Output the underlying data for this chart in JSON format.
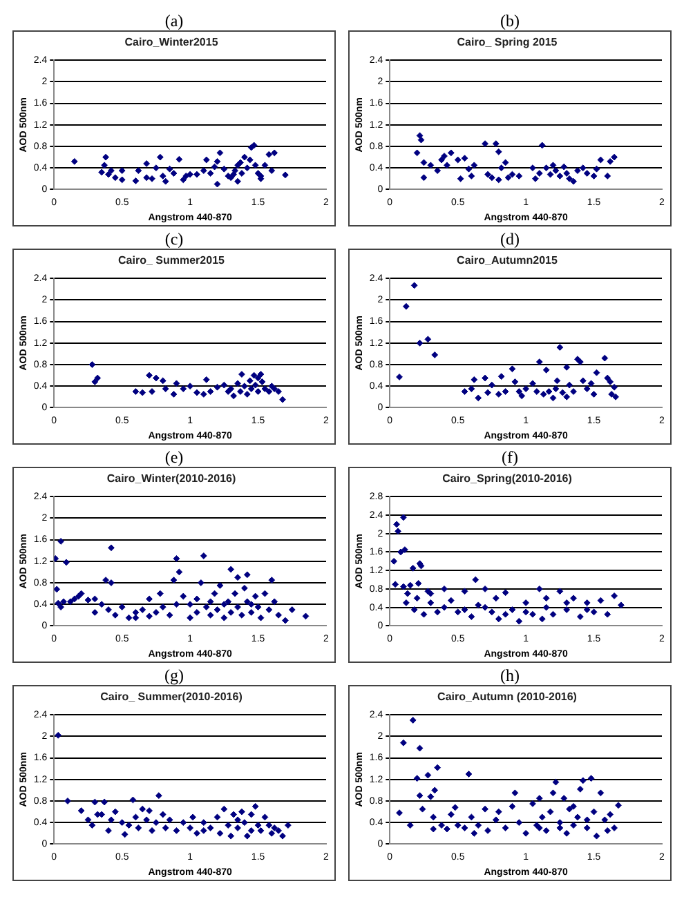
{
  "chart_data": [
    {
      "type": "scatter",
      "title": "Cairo_Winter2015",
      "annotations": [
        "(a)"
      ],
      "xlabel": "Angstrom 440-870",
      "ylabel": "AOD 500nm",
      "xlim": [
        0,
        2
      ],
      "xticks": [
        0,
        0.5,
        1,
        1.5,
        2
      ],
      "ylim": [
        0,
        2.4
      ],
      "yticks": [
        0,
        0.4,
        0.8,
        1.2,
        1.6,
        2,
        2.4
      ],
      "grid": "y",
      "marker": "diamond",
      "color": "#000080",
      "x": [
        0.15,
        0.35,
        0.37,
        0.38,
        0.4,
        0.42,
        0.45,
        0.5,
        0.5,
        0.6,
        0.62,
        0.68,
        0.68,
        0.72,
        0.75,
        0.78,
        0.8,
        0.82,
        0.85,
        0.88,
        0.92,
        0.95,
        0.97,
        1.0,
        1.05,
        1.1,
        1.12,
        1.15,
        1.18,
        1.2,
        1.22,
        1.25,
        1.2,
        1.28,
        1.3,
        1.32,
        1.33,
        1.35,
        1.35,
        1.37,
        1.38,
        1.4,
        1.42,
        1.44,
        1.45,
        1.47,
        1.48,
        1.5,
        1.52,
        1.52,
        1.55,
        1.58,
        1.6,
        1.62,
        1.7
      ],
      "values": [
        0.52,
        0.32,
        0.45,
        0.6,
        0.28,
        0.35,
        0.22,
        0.35,
        0.18,
        0.16,
        0.35,
        0.48,
        0.22,
        0.2,
        0.4,
        0.6,
        0.25,
        0.15,
        0.38,
        0.3,
        0.56,
        0.18,
        0.25,
        0.28,
        0.28,
        0.35,
        0.55,
        0.3,
        0.42,
        0.52,
        0.68,
        0.38,
        0.1,
        0.25,
        0.22,
        0.28,
        0.35,
        0.15,
        0.45,
        0.5,
        0.3,
        0.6,
        0.4,
        0.55,
        0.78,
        0.82,
        0.45,
        0.3,
        0.2,
        0.25,
        0.45,
        0.65,
        0.35,
        0.68,
        0.27
      ]
    },
    {
      "type": "scatter",
      "title": "Cairo_ Spring 2015",
      "annotations": [
        "(b)"
      ],
      "xlabel": "Angstrom 440-870",
      "ylabel": "AOD 500nm",
      "xlim": [
        0,
        2
      ],
      "xticks": [
        0,
        0.5,
        1,
        1.5,
        2
      ],
      "ylim": [
        0,
        2.4
      ],
      "yticks": [
        0,
        0.4,
        0.8,
        1.2,
        1.6,
        2,
        2.4
      ],
      "grid": "y",
      "marker": "diamond",
      "color": "#000080",
      "x": [
        0.2,
        0.22,
        0.23,
        0.25,
        0.25,
        0.3,
        0.35,
        0.38,
        0.4,
        0.42,
        0.45,
        0.5,
        0.52,
        0.55,
        0.58,
        0.6,
        0.62,
        0.7,
        0.72,
        0.75,
        0.78,
        0.8,
        0.8,
        0.82,
        0.85,
        0.87,
        0.9,
        0.95,
        1.05,
        1.07,
        1.1,
        1.12,
        1.15,
        1.18,
        1.2,
        1.22,
        1.25,
        1.28,
        1.3,
        1.32,
        1.35,
        1.38,
        1.42,
        1.45,
        1.5,
        1.52,
        1.55,
        1.6,
        1.62,
        1.65
      ],
      "values": [
        0.68,
        1.0,
        0.92,
        0.5,
        0.22,
        0.45,
        0.35,
        0.55,
        0.62,
        0.45,
        0.68,
        0.55,
        0.2,
        0.58,
        0.38,
        0.25,
        0.45,
        0.85,
        0.28,
        0.22,
        0.85,
        0.7,
        0.18,
        0.4,
        0.5,
        0.22,
        0.28,
        0.25,
        0.4,
        0.2,
        0.3,
        0.82,
        0.4,
        0.28,
        0.45,
        0.35,
        0.25,
        0.42,
        0.3,
        0.2,
        0.15,
        0.35,
        0.4,
        0.3,
        0.25,
        0.38,
        0.55,
        0.25,
        0.52,
        0.6
      ]
    },
    {
      "type": "scatter",
      "title": "Cairo_ Summer2015",
      "annotations": [
        "(c)"
      ],
      "xlabel": "Angstrom 440-870",
      "ylabel": "AOD 500nm",
      "xlim": [
        0,
        2
      ],
      "xticks": [
        0,
        0.5,
        1,
        1.5,
        2
      ],
      "ylim": [
        0,
        2.4
      ],
      "yticks": [
        0,
        0.4,
        0.8,
        1.2,
        1.6,
        2,
        2.4
      ],
      "grid": "y",
      "marker": "diamond",
      "color": "#000080",
      "x": [
        0.28,
        0.3,
        0.32,
        0.6,
        0.65,
        0.7,
        0.72,
        0.75,
        0.8,
        0.82,
        0.88,
        0.9,
        0.95,
        1.0,
        1.05,
        1.1,
        1.12,
        1.15,
        1.2,
        1.25,
        1.28,
        1.3,
        1.32,
        1.35,
        1.37,
        1.38,
        1.4,
        1.42,
        1.44,
        1.45,
        1.47,
        1.48,
        1.5,
        1.5,
        1.52,
        1.53,
        1.55,
        1.58,
        1.6,
        1.62,
        1.65,
        1.68
      ],
      "values": [
        0.8,
        0.48,
        0.55,
        0.3,
        0.28,
        0.6,
        0.3,
        0.55,
        0.5,
        0.35,
        0.25,
        0.45,
        0.35,
        0.4,
        0.28,
        0.25,
        0.52,
        0.3,
        0.38,
        0.42,
        0.3,
        0.35,
        0.22,
        0.45,
        0.3,
        0.62,
        0.4,
        0.25,
        0.5,
        0.35,
        0.6,
        0.42,
        0.55,
        0.3,
        0.62,
        0.48,
        0.35,
        0.3,
        0.4,
        0.35,
        0.3,
        0.15
      ]
    },
    {
      "type": "scatter",
      "title": "Cairo_Autumn2015",
      "annotations": [
        "(d)"
      ],
      "xlabel": "Angstrom 440-870",
      "ylabel": "AOD 500nm",
      "xlim": [
        0,
        2
      ],
      "xticks": [
        0,
        0.5,
        1,
        1.5,
        2
      ],
      "ylim": [
        0,
        2.4
      ],
      "yticks": [
        0,
        0.4,
        0.8,
        1.2,
        1.6,
        2,
        2.4
      ],
      "grid": "y",
      "marker": "diamond",
      "color": "#000080",
      "x": [
        0.07,
        0.12,
        0.18,
        0.22,
        0.28,
        0.33,
        0.55,
        0.6,
        0.62,
        0.65,
        0.7,
        0.72,
        0.75,
        0.8,
        0.82,
        0.85,
        0.9,
        0.92,
        0.95,
        0.97,
        1.0,
        1.05,
        1.08,
        1.1,
        1.13,
        1.15,
        1.17,
        1.2,
        1.22,
        1.23,
        1.25,
        1.27,
        1.3,
        1.3,
        1.32,
        1.35,
        1.38,
        1.4,
        1.42,
        1.45,
        1.48,
        1.5,
        1.52,
        1.58,
        1.6,
        1.62,
        1.63,
        1.65,
        1.66
      ],
      "values": [
        0.57,
        1.88,
        2.27,
        1.2,
        1.27,
        0.98,
        0.3,
        0.35,
        0.52,
        0.18,
        0.55,
        0.28,
        0.42,
        0.25,
        0.58,
        0.3,
        0.72,
        0.48,
        0.3,
        0.22,
        0.35,
        0.45,
        0.3,
        0.85,
        0.25,
        0.7,
        0.3,
        0.18,
        0.35,
        0.5,
        1.12,
        0.28,
        0.75,
        0.2,
        0.42,
        0.3,
        0.9,
        0.85,
        0.5,
        0.35,
        0.45,
        0.25,
        0.65,
        0.92,
        0.55,
        0.48,
        0.25,
        0.38,
        0.2
      ]
    },
    {
      "type": "scatter",
      "title": "Cairo_Winter(2010-2016)",
      "annotations": [
        "(e)"
      ],
      "xlabel": "Angstrom 440-870",
      "ylabel": "AOD 500nm",
      "xlim": [
        0,
        2
      ],
      "xticks": [
        0,
        0.5,
        1,
        1.5,
        2
      ],
      "ylim": [
        0,
        2.4
      ],
      "yticks": [
        0,
        0.4,
        0.8,
        1.2,
        1.6,
        2,
        2.4
      ],
      "grid": "y",
      "marker": "diamond",
      "color": "#000080",
      "x": [
        0.01,
        0.02,
        0.03,
        0.05,
        0.05,
        0.07,
        0.09,
        0.12,
        0.15,
        0.18,
        0.2,
        0.25,
        0.3,
        0.35,
        0.38,
        0.4,
        0.42,
        0.42,
        0.45,
        0.5,
        0.55,
        0.6,
        0.65,
        0.7,
        0.7,
        0.75,
        0.78,
        0.8,
        0.85,
        0.88,
        0.9,
        0.92,
        0.9,
        0.95,
        1.0,
        1.0,
        1.05,
        1.08,
        1.1,
        1.12,
        1.15,
        1.18,
        1.2,
        1.22,
        1.25,
        1.28,
        1.3,
        1.3,
        1.33,
        1.35,
        1.35,
        1.38,
        1.4,
        1.42,
        1.42,
        1.45,
        1.48,
        1.5,
        1.52,
        1.55,
        1.58,
        1.6,
        1.62,
        1.65,
        1.7,
        1.75,
        1.85,
        1.25,
        1.15,
        1.45,
        0.6,
        0.3,
        1.05
      ],
      "values": [
        1.25,
        0.68,
        0.42,
        1.57,
        0.35,
        0.45,
        1.18,
        0.45,
        0.5,
        0.55,
        0.6,
        0.48,
        0.25,
        0.4,
        0.85,
        0.3,
        1.45,
        0.8,
        0.2,
        0.35,
        0.15,
        0.25,
        0.3,
        0.18,
        0.5,
        0.25,
        0.6,
        0.35,
        0.2,
        0.85,
        1.25,
        1.0,
        0.4,
        0.55,
        0.15,
        0.4,
        0.25,
        0.8,
        1.3,
        0.35,
        0.2,
        0.6,
        0.3,
        0.75,
        0.15,
        0.45,
        1.05,
        0.25,
        0.6,
        0.9,
        0.35,
        0.2,
        0.7,
        0.95,
        0.45,
        0.25,
        0.55,
        0.35,
        0.15,
        0.6,
        0.3,
        0.85,
        0.45,
        0.2,
        0.1,
        0.3,
        0.18,
        0.4,
        0.45,
        0.4,
        0.15,
        0.5,
        0.5
      ]
    },
    {
      "type": "scatter",
      "title": "Cairo_Spring(2010-2016)",
      "annotations": [
        "(f)"
      ],
      "xlabel": "Angstrom 440-870",
      "ylabel": "AOD 500nm",
      "xlim": [
        0,
        2
      ],
      "xticks": [
        0,
        0.5,
        1,
        1.5,
        2
      ],
      "ylim": [
        0,
        2.8
      ],
      "yticks": [
        0,
        0.4,
        0.8,
        1.2,
        1.6,
        2,
        2.4,
        2.8
      ],
      "grid": "y",
      "marker": "diamond",
      "color": "#000080",
      "x": [
        0.03,
        0.04,
        0.05,
        0.06,
        0.08,
        0.1,
        0.1,
        0.11,
        0.12,
        0.13,
        0.15,
        0.17,
        0.18,
        0.2,
        0.21,
        0.22,
        0.23,
        0.25,
        0.28,
        0.3,
        0.35,
        0.4,
        0.45,
        0.5,
        0.55,
        0.6,
        0.63,
        0.65,
        0.7,
        0.75,
        0.78,
        0.8,
        0.85,
        0.9,
        0.95,
        1.0,
        1.05,
        1.1,
        1.12,
        1.15,
        1.2,
        1.25,
        1.3,
        1.35,
        1.4,
        1.45,
        1.5,
        1.55,
        1.6,
        1.65,
        1.7,
        0.4,
        0.7,
        1.0,
        1.3,
        0.3,
        0.55,
        0.85,
        1.15,
        1.45
      ],
      "values": [
        1.4,
        0.9,
        2.2,
        2.05,
        1.6,
        2.35,
        0.85,
        1.65,
        0.5,
        0.7,
        0.88,
        1.25,
        0.35,
        0.6,
        0.92,
        1.35,
        1.3,
        0.25,
        0.75,
        0.5,
        0.3,
        0.8,
        0.55,
        0.3,
        0.75,
        0.2,
        1.0,
        0.45,
        0.8,
        0.3,
        0.6,
        0.15,
        0.72,
        0.35,
        0.1,
        0.5,
        0.25,
        0.8,
        0.15,
        0.4,
        0.25,
        0.75,
        0.35,
        0.6,
        0.2,
        0.5,
        0.3,
        0.55,
        0.25,
        0.65,
        0.45,
        0.4,
        0.4,
        0.3,
        0.5,
        0.7,
        0.35,
        0.25,
        0.6,
        0.35
      ]
    },
    {
      "type": "scatter",
      "title": "Cairo_ Summer(2010-2016)",
      "annotations": [
        "(g)"
      ],
      "xlabel": "Angstrom 440-870",
      "ylabel": "AOD 500nm",
      "xlim": [
        0,
        2
      ],
      "xticks": [
        0,
        0.5,
        1,
        1.5,
        2
      ],
      "ylim": [
        0,
        2.4
      ],
      "yticks": [
        0,
        0.4,
        0.8,
        1.2,
        1.6,
        2,
        2.4
      ],
      "grid": "y",
      "marker": "diamond",
      "color": "#000080",
      "x": [
        0.03,
        0.1,
        0.2,
        0.25,
        0.28,
        0.3,
        0.32,
        0.35,
        0.37,
        0.4,
        0.42,
        0.45,
        0.5,
        0.52,
        0.55,
        0.58,
        0.6,
        0.62,
        0.65,
        0.68,
        0.7,
        0.72,
        0.75,
        0.77,
        0.8,
        0.82,
        0.85,
        0.9,
        0.95,
        1.0,
        1.02,
        1.05,
        1.1,
        1.15,
        1.2,
        1.22,
        1.25,
        1.28,
        1.3,
        1.32,
        1.35,
        1.38,
        1.4,
        1.42,
        1.45,
        1.48,
        1.5,
        1.52,
        1.55,
        1.58,
        1.6,
        1.62,
        1.65,
        1.68,
        1.72,
        1.1,
        1.35,
        1.45
      ],
      "values": [
        2.02,
        0.8,
        0.62,
        0.45,
        0.35,
        0.78,
        0.55,
        0.55,
        0.78,
        0.25,
        0.45,
        0.6,
        0.4,
        0.18,
        0.35,
        0.82,
        0.5,
        0.3,
        0.65,
        0.45,
        0.62,
        0.25,
        0.4,
        0.9,
        0.55,
        0.3,
        0.45,
        0.25,
        0.4,
        0.3,
        0.5,
        0.2,
        0.4,
        0.3,
        0.5,
        0.2,
        0.65,
        0.35,
        0.15,
        0.55,
        0.3,
        0.6,
        0.4,
        0.15,
        0.55,
        0.7,
        0.35,
        0.25,
        0.5,
        0.35,
        0.2,
        0.3,
        0.25,
        0.15,
        0.35,
        0.25,
        0.45,
        0.25
      ]
    },
    {
      "type": "scatter",
      "title": "Cairo_Autumn (2010-2016)",
      "annotations": [
        "(h)"
      ],
      "xlabel": "Angstrom 440-870",
      "ylabel": "AOD 500nm",
      "xlim": [
        0,
        2
      ],
      "xticks": [
        0,
        0.5,
        1,
        1.5,
        2
      ],
      "ylim": [
        0,
        2.4
      ],
      "yticks": [
        0,
        0.4,
        0.8,
        1.2,
        1.6,
        2,
        2.4
      ],
      "grid": "y",
      "marker": "diamond",
      "color": "#000080",
      "x": [
        0.07,
        0.1,
        0.15,
        0.17,
        0.2,
        0.22,
        0.22,
        0.24,
        0.28,
        0.3,
        0.32,
        0.32,
        0.33,
        0.35,
        0.38,
        0.42,
        0.45,
        0.48,
        0.5,
        0.55,
        0.58,
        0.6,
        0.62,
        0.65,
        0.7,
        0.72,
        0.78,
        0.8,
        0.85,
        0.9,
        0.92,
        0.95,
        1.0,
        1.05,
        1.08,
        1.1,
        1.12,
        1.15,
        1.18,
        1.2,
        1.22,
        1.25,
        1.28,
        1.3,
        1.32,
        1.35,
        1.38,
        1.4,
        1.42,
        1.45,
        1.48,
        1.5,
        1.52,
        1.55,
        1.58,
        1.6,
        1.62,
        1.65,
        1.68,
        1.25,
        1.35,
        1.1,
        1.45
      ],
      "values": [
        0.58,
        1.88,
        0.35,
        2.3,
        1.22,
        1.78,
        0.9,
        0.65,
        1.28,
        0.88,
        0.5,
        0.28,
        1.0,
        1.42,
        0.35,
        0.28,
        0.55,
        0.68,
        0.35,
        0.3,
        1.3,
        0.5,
        0.2,
        0.35,
        0.65,
        0.25,
        0.45,
        0.6,
        0.3,
        0.7,
        0.95,
        0.4,
        0.2,
        0.75,
        0.35,
        0.85,
        0.5,
        0.25,
        0.6,
        0.95,
        1.15,
        0.4,
        0.85,
        0.2,
        0.65,
        0.35,
        0.5,
        1.02,
        1.18,
        0.3,
        1.22,
        0.6,
        0.15,
        0.95,
        0.45,
        0.25,
        0.55,
        0.3,
        0.72,
        0.3,
        0.7,
        0.3,
        0.45
      ]
    }
  ]
}
